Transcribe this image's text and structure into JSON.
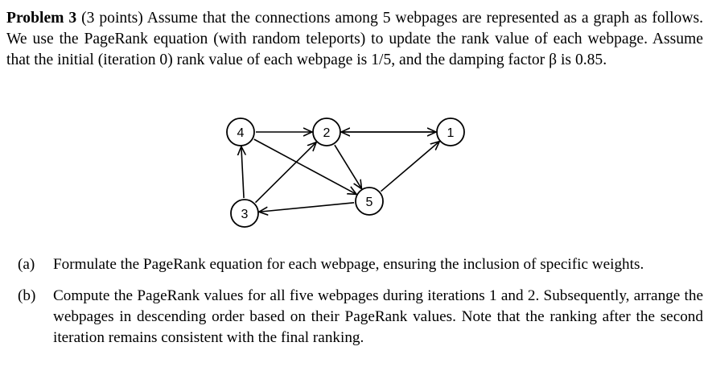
{
  "problem": {
    "heading": "Problem 3",
    "points": "(3 points)",
    "text": "Assume that the connections among 5 webpages are represented as a graph as follows. We use the PageRank equation (with random teleports) to update the rank value of each webpage. Assume that the initial (iteration 0) rank value of each webpage is 1/5, and the damping factor β is 0.85."
  },
  "graph": {
    "nodes": [
      {
        "id": "4",
        "label": "4"
      },
      {
        "id": "2",
        "label": "2"
      },
      {
        "id": "1",
        "label": "1"
      },
      {
        "id": "3",
        "label": "3"
      },
      {
        "id": "5",
        "label": "5"
      }
    ],
    "edges": [
      {
        "from": "4",
        "to": "2"
      },
      {
        "from": "1",
        "to": "2"
      },
      {
        "from": "2",
        "to": "1"
      },
      {
        "from": "4",
        "to": "5"
      },
      {
        "from": "2",
        "to": "5"
      },
      {
        "from": "3",
        "to": "4"
      },
      {
        "from": "3",
        "to": "2"
      },
      {
        "from": "5",
        "to": "1"
      },
      {
        "from": "5",
        "to": "3"
      }
    ]
  },
  "parts": [
    {
      "label": "(a)",
      "text": "Formulate the PageRank equation for each webpage, ensuring the inclusion of specific weights."
    },
    {
      "label": "(b)",
      "text": "Compute the PageRank values for all five webpages during iterations 1 and 2. Subsequently, arrange the webpages in descending order based on their PageRank values. Note that the ranking after the second iteration remains consistent with the final ranking."
    }
  ]
}
